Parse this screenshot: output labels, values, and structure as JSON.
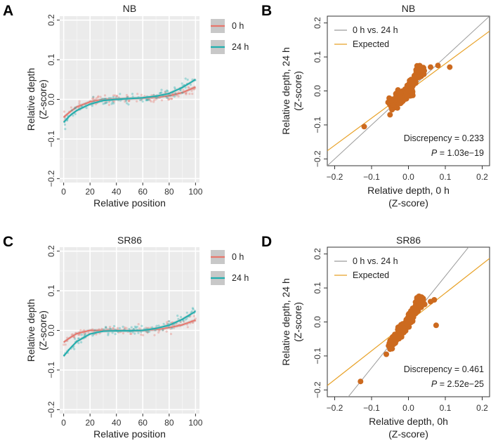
{
  "colors": {
    "series_0h": "#E8766C",
    "series_24h": "#1FAFAE",
    "scatter": "#CC6A1F",
    "identity_line": "#9A9A9A",
    "expected_line": "#E8A126",
    "panel_bg": "#EBEBEB"
  },
  "chart_data": [
    {
      "id": "A",
      "type": "scatter",
      "panel_letter": "A",
      "title": "NB",
      "xlabel": "Relative position",
      "ylabel": [
        "Relative depth",
        "(Z-score)"
      ],
      "xlim": [
        -3,
        103
      ],
      "ylim": [
        -0.21,
        0.21
      ],
      "xticks": [
        0,
        20,
        40,
        60,
        80,
        100
      ],
      "yticks": [
        -0.2,
        -0.1,
        0.0,
        0.1,
        0.2
      ],
      "xtick_labels": [
        "0",
        "20",
        "40",
        "60",
        "80",
        "100"
      ],
      "ytick_labels": [
        "−0.2",
        "−0.1",
        "0.0",
        "0.1",
        "0.2"
      ],
      "legend": [
        "0 h",
        "24 h"
      ],
      "series": [
        {
          "name": "0 h",
          "x": [
            0,
            5,
            10,
            20,
            30,
            40,
            50,
            60,
            70,
            80,
            90,
            100
          ],
          "y": [
            -0.045,
            -0.031,
            -0.019,
            -0.006,
            0.0,
            0.001,
            0.002,
            0.003,
            0.005,
            0.009,
            0.017,
            0.031
          ]
        },
        {
          "name": "24 h",
          "x": [
            0,
            5,
            10,
            20,
            30,
            40,
            50,
            60,
            70,
            80,
            90,
            100
          ],
          "y": [
            -0.058,
            -0.04,
            -0.028,
            -0.012,
            -0.003,
            0.0,
            0.002,
            0.004,
            0.008,
            0.015,
            0.03,
            0.05
          ]
        }
      ]
    },
    {
      "id": "B",
      "type": "scatter",
      "panel_letter": "B",
      "title": "NB",
      "xlabel": [
        "Relative depth, 0 h",
        "(Z-score)"
      ],
      "ylabel": [
        "Relative depth, 24 h",
        "(Z-score)"
      ],
      "xlim": [
        -0.22,
        0.22
      ],
      "ylim": [
        -0.22,
        0.22
      ],
      "xticks": [
        -0.2,
        -0.1,
        0.0,
        0.1,
        0.2
      ],
      "yticks": [
        -0.2,
        -0.1,
        0.0,
        0.1,
        0.2
      ],
      "xtick_labels": [
        "−0.2",
        "−0.1",
        "0.0",
        "0.1",
        "0.2"
      ],
      "ytick_labels": [
        "−0.2",
        "−0.1",
        "0.0",
        "0.1",
        "0.2"
      ],
      "legend": [
        "0 h vs. 24 h",
        "Expected"
      ],
      "identity_slope": 1.0,
      "expected_slope": 0.8,
      "annotation_discrepency": "Discrepency = 0.233",
      "annotation_p_label": "P",
      "annotation_p_value": " = 1.03e−19",
      "points": {
        "x": [
          -0.12,
          -0.05,
          -0.03,
          -0.015,
          0.0,
          0.01,
          0.02,
          0.03,
          0.06,
          0.08,
          0.112
        ],
        "y": [
          -0.105,
          -0.07,
          -0.05,
          -0.03,
          0.0,
          0.02,
          0.04,
          0.06,
          0.07,
          0.075,
          0.07
        ]
      }
    },
    {
      "id": "C",
      "type": "scatter",
      "panel_letter": "C",
      "title": "SR86",
      "xlabel": "Relative position",
      "ylabel": [
        "Relative depth",
        "(Z-score)"
      ],
      "xlim": [
        -3,
        103
      ],
      "ylim": [
        -0.21,
        0.21
      ],
      "xticks": [
        0,
        20,
        40,
        60,
        80,
        100
      ],
      "yticks": [
        -0.2,
        -0.1,
        0.0,
        0.1,
        0.2
      ],
      "xtick_labels": [
        "0",
        "20",
        "40",
        "60",
        "80",
        "100"
      ],
      "ytick_labels": [
        "−0.2",
        "−0.1",
        "0.0",
        "0.1",
        "0.2"
      ],
      "legend": [
        "0 h",
        "24 h"
      ],
      "series": [
        {
          "name": "0 h",
          "x": [
            0,
            5,
            10,
            20,
            30,
            40,
            50,
            60,
            70,
            80,
            90,
            100
          ],
          "y": [
            -0.03,
            -0.018,
            -0.008,
            0.0,
            0.0,
            0.0,
            -0.001,
            0.0,
            0.002,
            0.007,
            0.014,
            0.026
          ]
        },
        {
          "name": "24 h",
          "x": [
            0,
            5,
            10,
            20,
            30,
            40,
            50,
            60,
            70,
            80,
            90,
            100
          ],
          "y": [
            -0.065,
            -0.045,
            -0.028,
            -0.009,
            -0.002,
            -0.001,
            -0.001,
            0.0,
            0.005,
            0.013,
            0.028,
            0.048
          ]
        }
      ]
    },
    {
      "id": "D",
      "type": "scatter",
      "panel_letter": "D",
      "title": "SR86",
      "xlabel": [
        "Relative depth, 0h",
        "(Z-score)"
      ],
      "ylabel": [
        "Relative depth, 24 h",
        "(Z-score)"
      ],
      "xlim": [
        -0.22,
        0.22
      ],
      "ylim": [
        -0.22,
        0.22
      ],
      "xticks": [
        -0.2,
        -0.1,
        0.0,
        0.1,
        0.2
      ],
      "yticks": [
        -0.2,
        -0.1,
        0.0,
        0.1,
        0.2
      ],
      "xtick_labels": [
        "−0.2",
        "−0.1",
        "0.0",
        "0.1",
        "0.2"
      ],
      "ytick_labels": [
        "−0.2",
        "−0.1",
        "0.0",
        "0.1",
        "0.2"
      ],
      "legend": [
        "0 h vs. 24 h",
        "Expected"
      ],
      "identity_slope": 1.35,
      "expected_slope": 0.85,
      "annotation_discrepency": "Discrepency = 0.461",
      "annotation_p_label": "P",
      "annotation_p_value": " = 2.52e−25",
      "points": {
        "x": [
          -0.13,
          -0.06,
          -0.05,
          -0.02,
          0.0,
          0.01,
          0.02,
          0.03,
          0.06,
          0.07,
          0.075
        ],
        "y": [
          -0.175,
          -0.095,
          -0.08,
          -0.04,
          0.0,
          0.02,
          0.04,
          0.06,
          0.06,
          0.065,
          -0.01
        ]
      }
    }
  ]
}
